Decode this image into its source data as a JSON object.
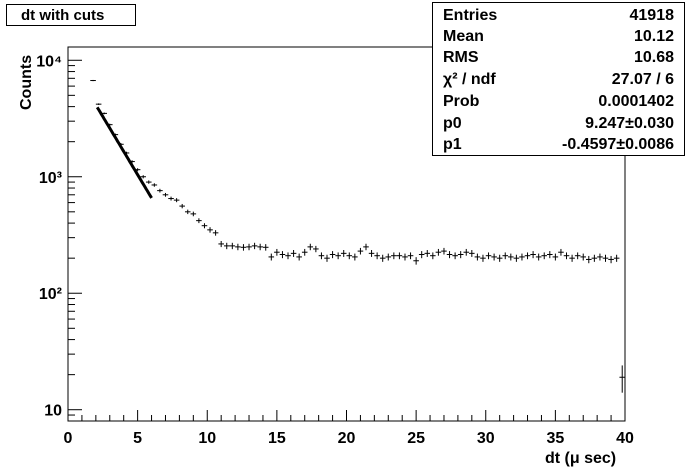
{
  "title": "dt with cuts",
  "stats": [
    {
      "label": "Entries",
      "value": "41918"
    },
    {
      "label": "Mean",
      "value": "10.12"
    },
    {
      "label": "RMS",
      "value": "10.68"
    },
    {
      "label": "χ² / ndf",
      "value": "27.07 / 6"
    },
    {
      "label": "Prob",
      "value": "0.0001402"
    },
    {
      "label": "p0",
      "value": "9.247±0.030"
    },
    {
      "label": "p1",
      "value": "-0.4597±0.0086"
    }
  ],
  "chart_data": {
    "type": "scatter",
    "title": "dt with cuts",
    "xlabel": "dt (μ sec)",
    "ylabel": "Counts",
    "xlim": [
      0,
      40
    ],
    "ylim": [
      8,
      13000
    ],
    "y_scale": "log",
    "x_ticks": [
      "0",
      "5",
      "10",
      "15",
      "20",
      "25",
      "30",
      "35",
      "40"
    ],
    "y_ticks": [
      {
        "value": 10,
        "label": "10"
      },
      {
        "value": 100,
        "label": "10²"
      },
      {
        "value": 1000,
        "label": "10³"
      },
      {
        "value": 10000,
        "label": "10⁴"
      }
    ],
    "bin_width": 0.4,
    "series": [
      {
        "name": "histogram",
        "x": [
          1.8,
          2.2,
          2.6,
          3.0,
          3.4,
          3.8,
          4.2,
          4.6,
          5.0,
          5.4,
          5.8,
          6.2,
          6.6,
          7.0,
          7.4,
          7.8,
          8.2,
          8.6,
          9.0,
          9.4,
          9.8,
          10.2,
          10.6,
          11.0,
          11.4,
          11.8,
          12.2,
          12.6,
          13.0,
          13.4,
          13.8,
          14.2,
          14.6,
          15.0,
          15.4,
          15.8,
          16.2,
          16.6,
          17.0,
          17.4,
          17.8,
          18.2,
          18.6,
          19.0,
          19.4,
          19.8,
          20.2,
          20.6,
          21.0,
          21.4,
          21.8,
          22.2,
          22.6,
          23.0,
          23.4,
          23.8,
          24.2,
          24.6,
          25.0,
          25.4,
          25.8,
          26.2,
          26.6,
          27.0,
          27.4,
          27.8,
          28.2,
          28.6,
          29.0,
          29.4,
          29.8,
          30.2,
          30.6,
          31.0,
          31.4,
          31.8,
          32.2,
          32.6,
          33.0,
          33.4,
          33.8,
          34.2,
          34.6,
          35.0,
          35.4,
          35.8,
          36.2,
          36.6,
          37.0,
          37.4,
          37.8,
          38.2,
          38.6,
          39.0,
          39.4
        ],
        "y": [
          6700,
          4200,
          3500,
          2800,
          2300,
          1900,
          1600,
          1350,
          1150,
          1000,
          900,
          850,
          760,
          700,
          650,
          630,
          560,
          500,
          480,
          420,
          380,
          350,
          330,
          265,
          255,
          255,
          250,
          248,
          250,
          255,
          250,
          248,
          205,
          225,
          215,
          210,
          220,
          205,
          225,
          250,
          240,
          210,
          200,
          215,
          210,
          220,
          210,
          205,
          230,
          250,
          220,
          210,
          200,
          205,
          210,
          210,
          205,
          210,
          190,
          215,
          220,
          210,
          225,
          230,
          215,
          210,
          215,
          225,
          220,
          205,
          200,
          210,
          205,
          200,
          210,
          205,
          200,
          205,
          210,
          215,
          205,
          210,
          215,
          205,
          225,
          210,
          200,
          210,
          205,
          195,
          200,
          205,
          200,
          195,
          200
        ],
        "y_err": [
          80,
          65,
          60,
          55,
          48,
          44,
          40,
          37,
          34,
          32,
          30,
          29,
          28,
          26,
          25,
          25,
          24,
          22,
          22,
          20,
          19,
          19,
          18,
          16,
          16,
          16,
          16,
          16,
          16,
          16,
          16,
          16,
          14,
          15,
          15,
          14,
          15,
          14,
          15,
          16,
          15,
          14,
          14,
          15,
          14,
          15,
          14,
          14,
          15,
          16,
          15,
          14,
          14,
          14,
          14,
          14,
          14,
          14,
          14,
          15,
          15,
          14,
          15,
          15,
          15,
          14,
          15,
          15,
          15,
          14,
          14,
          14,
          14,
          14,
          14,
          14,
          14,
          14,
          14,
          15,
          14,
          14,
          15,
          14,
          15,
          14,
          14,
          14,
          14,
          14,
          14,
          14,
          14,
          14,
          14
        ]
      },
      {
        "name": "overflow",
        "x": [
          39.8
        ],
        "y": [
          19
        ],
        "y_err": [
          5
        ]
      },
      {
        "name": "fit",
        "function": "expo",
        "p0": 9.247,
        "p1": -0.4597,
        "x_range": [
          2.1,
          6.0
        ]
      }
    ]
  }
}
